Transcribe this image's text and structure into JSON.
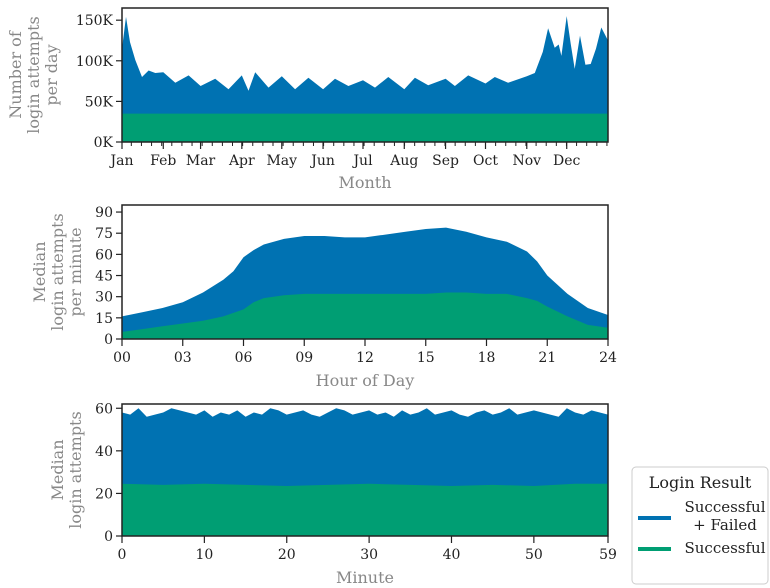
{
  "chart_data": [
    {
      "type": "area",
      "xlabel": "Month",
      "ylabel_lines": [
        "Number of",
        "login attempts",
        "per day"
      ],
      "ylim": [
        0,
        165000
      ],
      "x_range": [
        0,
        365
      ],
      "xtick_labels": [
        "Jan",
        "Feb",
        "Mar",
        "Apr",
        "May",
        "Jun",
        "Jul",
        "Aug",
        "Sep",
        "Oct",
        "Nov",
        "Dec"
      ],
      "xtick_positions_day": [
        0,
        31,
        59,
        90,
        120,
        151,
        181,
        212,
        243,
        273,
        304,
        334
      ],
      "ytick_labels": [
        "0K",
        "50K",
        "100K",
        "150K"
      ],
      "ytick_values": [
        0,
        50000,
        100000,
        150000
      ],
      "series": [
        {
          "name": "Successful + Failed",
          "x": [
            0,
            3,
            6,
            10,
            15,
            20,
            25,
            31,
            40,
            50,
            59,
            70,
            80,
            90,
            95,
            100,
            110,
            120,
            130,
            140,
            151,
            160,
            170,
            181,
            190,
            200,
            212,
            220,
            230,
            243,
            250,
            260,
            273,
            280,
            290,
            304,
            310,
            316,
            320,
            325,
            328,
            330,
            334,
            337,
            340,
            344,
            348,
            352,
            356,
            360,
            365
          ],
          "values": [
            115000,
            148000,
            128000,
            95000,
            85000,
            82000,
            90000,
            80000,
            78000,
            76000,
            74000,
            72000,
            70000,
            76000,
            68000,
            80000,
            72000,
            75000,
            70000,
            73000,
            70000,
            72000,
            74000,
            70000,
            72000,
            74000,
            70000,
            73000,
            75000,
            72000,
            74000,
            76000,
            77000,
            74000,
            78000,
            75000,
            90000,
            105000,
            145000,
            110000,
            125000,
            100000,
            160000,
            115000,
            95000,
            125000,
            100000,
            90000,
            120000,
            135000,
            125000
          ]
        },
        {
          "name": "Successful",
          "x": [
            0,
            365
          ],
          "values": [
            35000,
            35000
          ]
        }
      ]
    },
    {
      "type": "area",
      "xlabel": "Hour of Day",
      "ylabel_lines": [
        "Median",
        "login attempts",
        "per minute"
      ],
      "ylim": [
        0,
        95
      ],
      "x_range": [
        0,
        24
      ],
      "xtick_labels": [
        "00",
        "03",
        "06",
        "09",
        "12",
        "15",
        "18",
        "21",
        "24"
      ],
      "xtick_values": [
        0,
        3,
        6,
        9,
        12,
        15,
        18,
        21,
        24
      ],
      "ytick_labels": [
        "0",
        "15",
        "30",
        "45",
        "60",
        "75",
        "90"
      ],
      "ytick_values": [
        0,
        15,
        30,
        45,
        60,
        75,
        90
      ],
      "series": [
        {
          "name": "Successful + Failed",
          "x": [
            0,
            1,
            2,
            3,
            4,
            5,
            5.5,
            6,
            6.5,
            7,
            8,
            9,
            10,
            11,
            12,
            13,
            14,
            15,
            16,
            17,
            18,
            19,
            20,
            20.5,
            21,
            22,
            23,
            24
          ],
          "values": [
            16,
            19,
            22,
            26,
            33,
            42,
            48,
            58,
            63,
            67,
            71,
            73,
            73,
            72,
            72,
            74,
            76,
            78,
            79,
            76,
            72,
            69,
            62,
            55,
            45,
            32,
            22,
            17
          ]
        },
        {
          "name": "Successful",
          "x": [
            0,
            1,
            2,
            3,
            4,
            5,
            6,
            6.5,
            7,
            8,
            9,
            10,
            11,
            12,
            13,
            14,
            15,
            16,
            17,
            18,
            19,
            20,
            20.5,
            21,
            22,
            23,
            24
          ],
          "values": [
            5,
            7,
            9,
            11,
            13,
            16,
            21,
            26,
            29,
            31,
            32,
            32,
            32,
            32,
            32,
            32,
            32,
            33,
            33,
            32,
            32,
            29,
            27,
            23,
            16,
            10,
            8
          ]
        }
      ]
    },
    {
      "type": "area",
      "xlabel": "Minute",
      "ylabel_lines": [
        "Median",
        "login attempts"
      ],
      "ylim": [
        0,
        62
      ],
      "x_range": [
        0,
        59
      ],
      "xtick_labels": [
        "0",
        "10",
        "20",
        "30",
        "40",
        "50",
        "59"
      ],
      "xtick_values": [
        0,
        10,
        20,
        30,
        40,
        50,
        59
      ],
      "ytick_labels": [
        "0",
        "20",
        "40",
        "60"
      ],
      "ytick_values": [
        0,
        20,
        40,
        60
      ],
      "series": [
        {
          "name": "Successful + Failed",
          "x": [
            0,
            1,
            2,
            3,
            4,
            5,
            6,
            7,
            8,
            9,
            10,
            11,
            12,
            13,
            14,
            15,
            16,
            17,
            18,
            19,
            20,
            21,
            22,
            23,
            24,
            25,
            26,
            27,
            28,
            29,
            30,
            31,
            32,
            33,
            34,
            35,
            36,
            37,
            38,
            39,
            40,
            41,
            42,
            43,
            44,
            45,
            46,
            47,
            48,
            49,
            50,
            51,
            52,
            53,
            54,
            55,
            56,
            57,
            58,
            59
          ],
          "values": [
            58,
            57,
            60,
            56,
            57,
            58,
            60,
            59,
            58,
            57,
            59,
            56,
            58,
            57,
            59,
            56,
            58,
            57,
            60,
            59,
            57,
            58,
            59,
            57,
            56,
            58,
            60,
            59,
            57,
            58,
            59,
            57,
            58,
            56,
            59,
            57,
            58,
            60,
            57,
            58,
            59,
            57,
            56,
            58,
            59,
            57,
            58,
            60,
            57,
            58,
            59,
            58,
            57,
            56,
            60,
            58,
            57,
            59,
            58,
            57
          ]
        },
        {
          "name": "Successful",
          "x": [
            0,
            5,
            10,
            15,
            20,
            25,
            30,
            35,
            40,
            45,
            50,
            55,
            59
          ],
          "values": [
            24.5,
            24,
            24.5,
            24,
            23.5,
            24,
            24.5,
            24,
            23.5,
            24,
            23.5,
            24.5,
            24.5
          ]
        }
      ]
    }
  ],
  "legend": {
    "title": "Login Result",
    "entries": [
      {
        "label_lines": [
          "Successful",
          "+ Failed"
        ],
        "color": "#0072b2"
      },
      {
        "label_lines": [
          "Successful"
        ],
        "color": "#009e73"
      }
    ]
  },
  "colors": {
    "total": "#0072b2",
    "successful": "#009e73",
    "axis": "#222222",
    "label": "#888888"
  }
}
